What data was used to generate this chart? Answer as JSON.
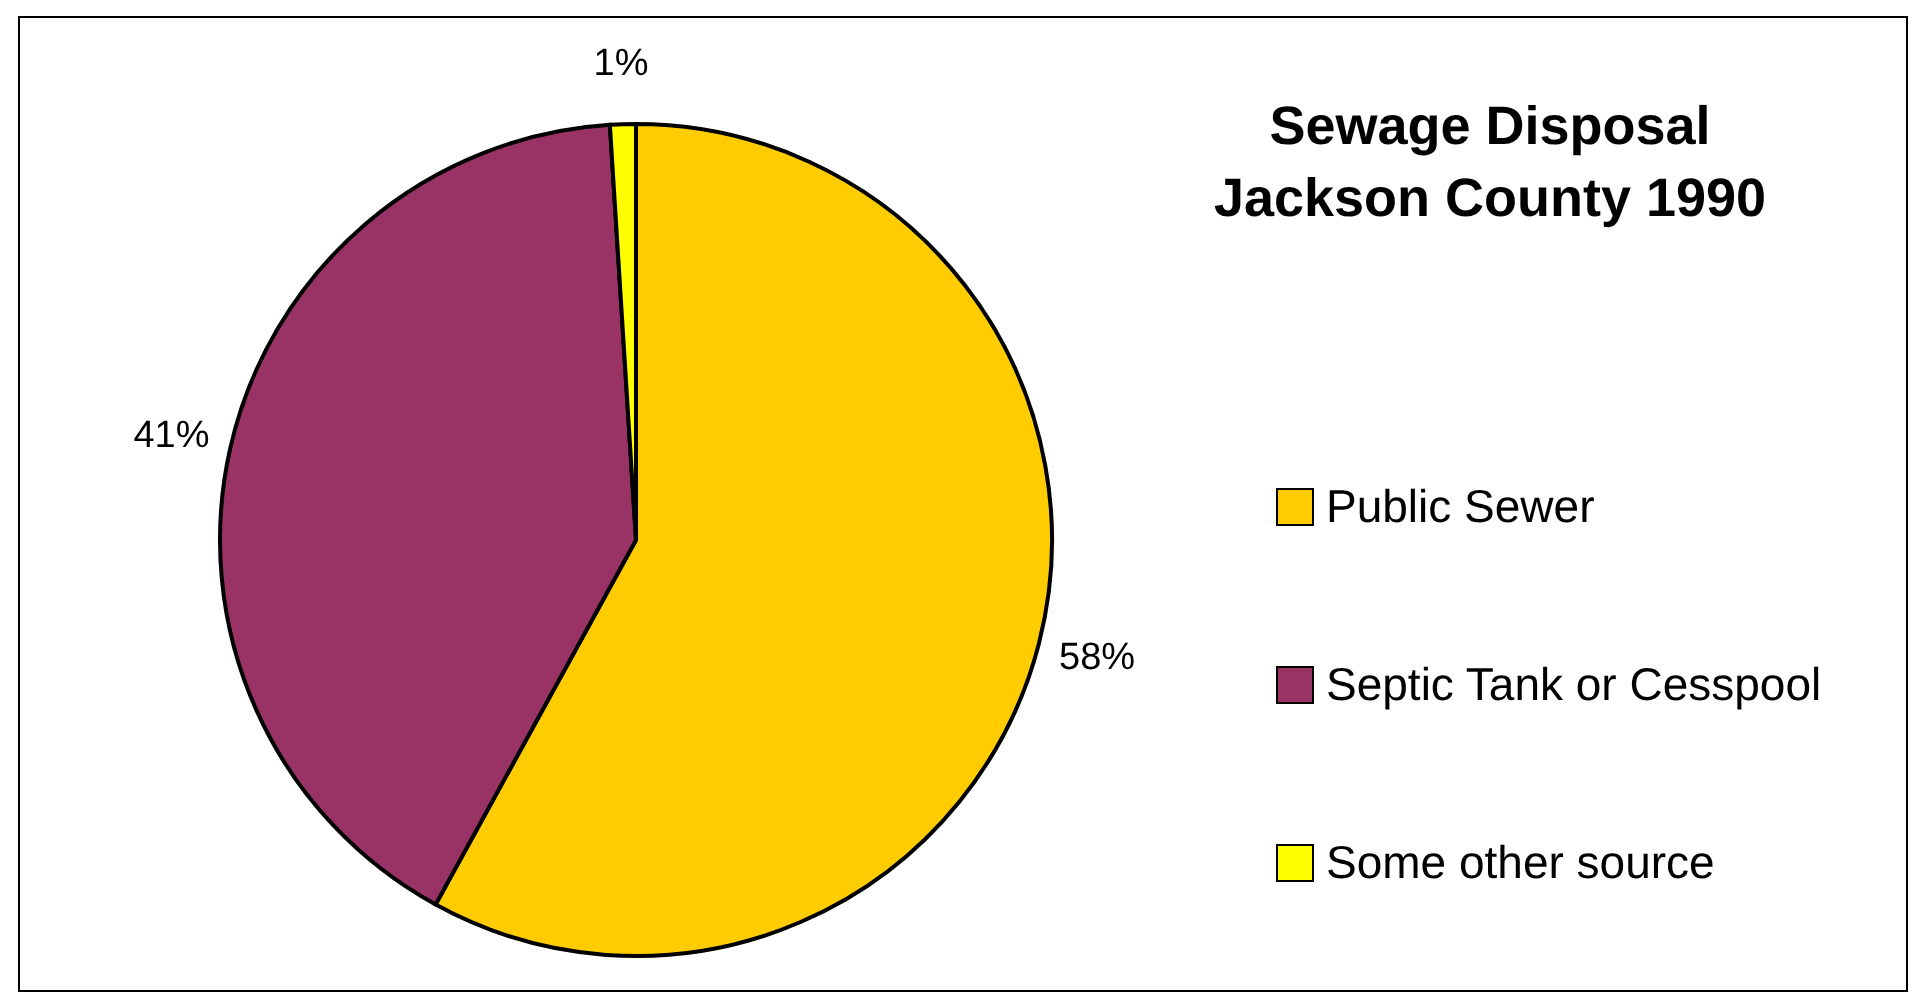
{
  "chart_data": {
    "type": "pie",
    "title": "Sewage Disposal\nJackson County 1990",
    "categories": [
      "Public Sewer",
      "Septic Tank or Cesspool",
      "Some other source"
    ],
    "values": [
      58,
      41,
      1
    ],
    "colors": [
      "#ffcc00",
      "#993366",
      "#ffff00"
    ],
    "value_labels": [
      "58%",
      "41%",
      "1%"
    ],
    "legend": "right"
  }
}
